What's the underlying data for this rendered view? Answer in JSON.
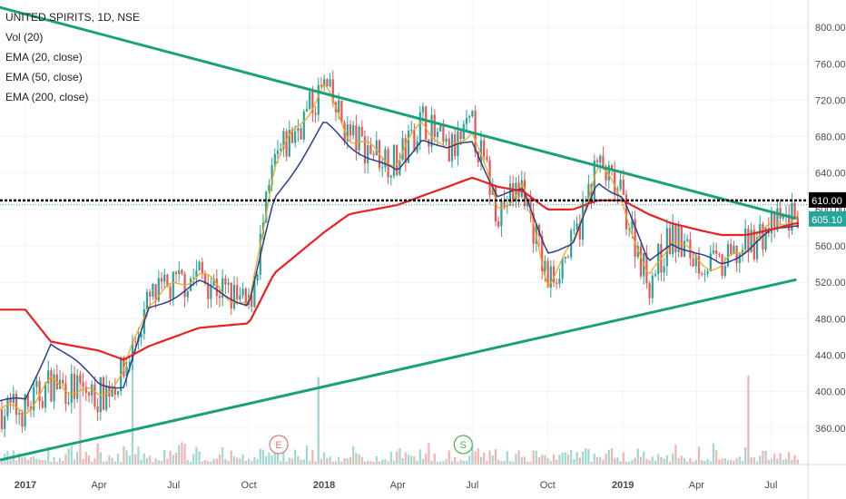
{
  "legend": {
    "symbol": "UNITED SPIRITS, 1D, NSE",
    "indicators": [
      "Vol (20)",
      "EMA (20, close)",
      "EMA (50, close)",
      "EMA (200, close)"
    ]
  },
  "colors": {
    "up_candle": "#26a69a",
    "down_candle": "#ef5350",
    "ema20": "#f5a623",
    "ema50": "#2c3e8f",
    "ema200": "#e82127",
    "trendline": "#1aa179",
    "resistance": "#000000",
    "price_tag": "#26a69a"
  },
  "chart_data": {
    "type": "line",
    "x_ticks": [
      "2017",
      "Apr",
      "Jul",
      "Oct",
      "2018",
      "Apr",
      "Jul",
      "Oct",
      "2019",
      "Apr",
      "Jul"
    ],
    "y_ticks": [
      "360.00",
      "400.00",
      "440.00",
      "480.00",
      "520.00",
      "560.00",
      "600.00",
      "640.00",
      "680.00",
      "720.00",
      "760.00",
      "800.00"
    ],
    "ylim": [
      320,
      830
    ],
    "price_labels": {
      "resistance": "610.00",
      "last": "605.10"
    },
    "event_markers": [
      "E",
      "S"
    ],
    "series": [
      {
        "name": "EMA (20, close)",
        "x": [
          "2017-01",
          "2017-02",
          "2017-04",
          "2017-05",
          "2017-06",
          "2017-08",
          "2017-10",
          "2017-11",
          "2018-01",
          "2018-02",
          "2018-04",
          "2018-05",
          "2018-06",
          "2018-07",
          "2018-08",
          "2018-09",
          "2018-10",
          "2018-11",
          "2018-12",
          "2019-01",
          "2019-02",
          "2019-03",
          "2019-04",
          "2019-05",
          "2019-06",
          "2019-07",
          "2019-08"
        ],
        "values": [
          380,
          410,
          395,
          420,
          500,
          530,
          490,
          650,
          735,
          680,
          650,
          700,
          660,
          690,
          600,
          625,
          520,
          560,
          650,
          610,
          520,
          570,
          545,
          535,
          560,
          580,
          595
        ]
      },
      {
        "name": "EMA (50, close)",
        "x": [
          "2017-01",
          "2017-02",
          "2017-04",
          "2017-05",
          "2017-06",
          "2017-08",
          "2017-10",
          "2017-11",
          "2018-01",
          "2018-02",
          "2018-04",
          "2018-05",
          "2018-06",
          "2018-07",
          "2018-08",
          "2018-09",
          "2018-10",
          "2018-11",
          "2018-12",
          "2019-01",
          "2019-02",
          "2019-03",
          "2019-04",
          "2019-05",
          "2019-06",
          "2019-07",
          "2019-08"
        ],
        "values": [
          390,
          455,
          410,
          405,
          490,
          520,
          495,
          610,
          695,
          670,
          640,
          680,
          665,
          675,
          615,
          620,
          555,
          560,
          630,
          615,
          540,
          565,
          550,
          540,
          555,
          575,
          585
        ]
      },
      {
        "name": "EMA (200, close)",
        "x": [
          "2017-01",
          "2017-02",
          "2017-04",
          "2017-05",
          "2017-06",
          "2017-08",
          "2017-10",
          "2017-11",
          "2018-01",
          "2018-02",
          "2018-04",
          "2018-05",
          "2018-06",
          "2018-07",
          "2018-08",
          "2018-09",
          "2018-10",
          "2018-11",
          "2018-12",
          "2019-01",
          "2019-02",
          "2019-03",
          "2019-04",
          "2019-05",
          "2019-06",
          "2019-07",
          "2019-08"
        ],
        "values": [
          490,
          455,
          445,
          435,
          450,
          470,
          475,
          530,
          575,
          595,
          605,
          615,
          625,
          635,
          625,
          620,
          600,
          600,
          610,
          610,
          595,
          585,
          578,
          572,
          572,
          578,
          585
        ]
      }
    ],
    "trendlines": [
      {
        "from": [
          "2016-04",
          880
        ],
        "to": [
          "2019-08",
          590
        ]
      },
      {
        "from": [
          "2016-12",
          325
        ],
        "to": [
          "2019-08",
          523
        ]
      }
    ],
    "horizontal_lines": [
      {
        "value": 610
      }
    ]
  }
}
